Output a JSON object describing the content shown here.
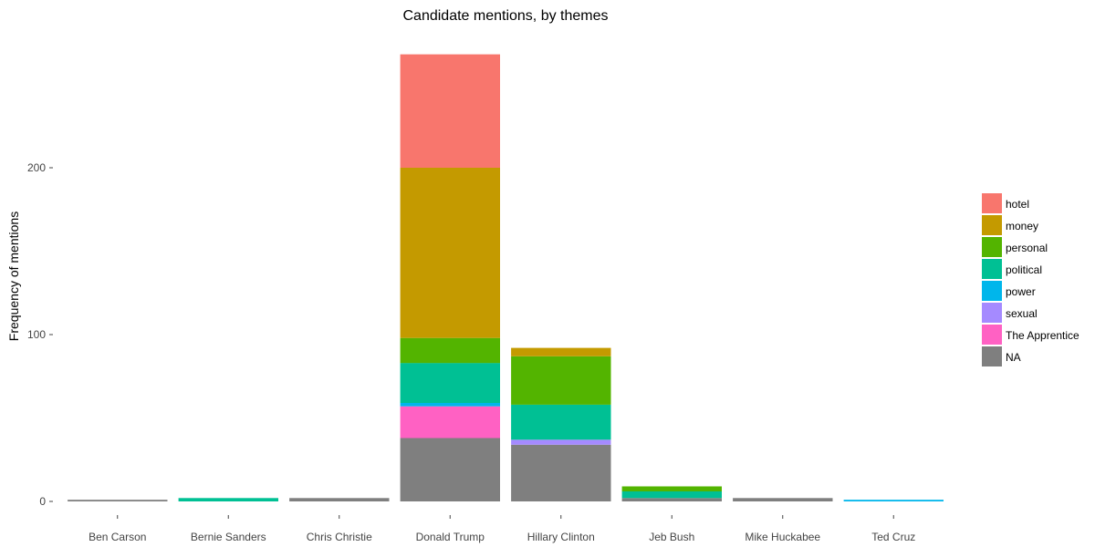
{
  "chart_data": {
    "type": "bar",
    "stacked": true,
    "title": "Candidate mentions, by themes",
    "xlabel": "",
    "ylabel": "Frequency of mentions",
    "ylim": [
      0,
      270
    ],
    "yticks": [
      0,
      100,
      200
    ],
    "grid": false,
    "legend_position": "right",
    "categories": [
      "Ben Carson",
      "Bernie Sanders",
      "Chris Christie",
      "Donald Trump",
      "Hillary Clinton",
      "Jeb Bush",
      "Mike Huckabee",
      "Ted Cruz"
    ],
    "series": [
      {
        "name": "NA",
        "color": "#7f7f7f",
        "values": [
          1,
          0,
          2,
          38,
          34,
          2,
          2,
          0
        ]
      },
      {
        "name": "The Apprentice",
        "color": "#ff61c3",
        "values": [
          0,
          0,
          0,
          19,
          0,
          0,
          0,
          0
        ]
      },
      {
        "name": "sexual",
        "color": "#a58aff",
        "values": [
          0,
          0,
          0,
          0,
          3,
          0,
          0,
          0
        ]
      },
      {
        "name": "power",
        "color": "#00b6eb",
        "values": [
          0,
          0,
          0,
          2,
          0,
          0,
          0,
          1
        ]
      },
      {
        "name": "political",
        "color": "#00c094",
        "values": [
          0,
          2,
          0,
          24,
          21,
          4,
          0,
          0
        ]
      },
      {
        "name": "personal",
        "color": "#53b400",
        "values": [
          0,
          0,
          0,
          15,
          29,
          3,
          0,
          0
        ]
      },
      {
        "name": "money",
        "color": "#c49a00",
        "values": [
          0,
          0,
          0,
          102,
          5,
          0,
          0,
          0
        ]
      },
      {
        "name": "hotel",
        "color": "#f8766d",
        "values": [
          0,
          0,
          0,
          68,
          0,
          0,
          0,
          0
        ]
      }
    ],
    "legend_order": [
      "hotel",
      "money",
      "personal",
      "political",
      "power",
      "sexual",
      "The Apprentice",
      "NA"
    ]
  }
}
